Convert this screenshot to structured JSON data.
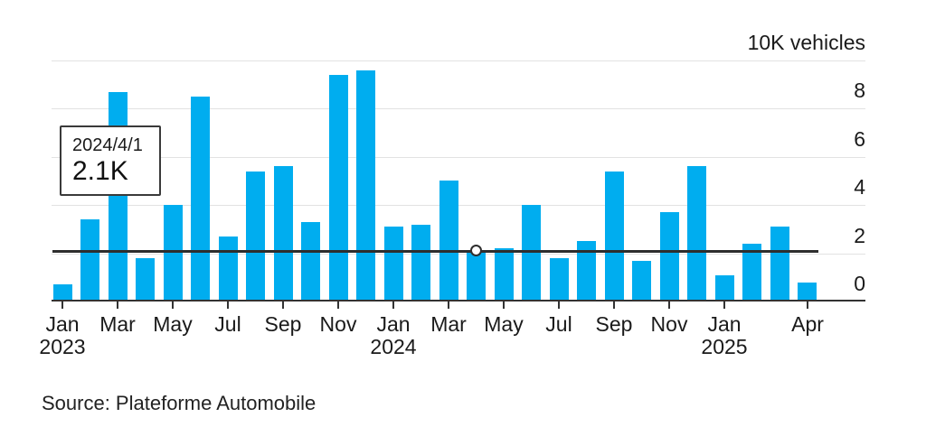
{
  "chart_data": {
    "type": "bar",
    "title": "",
    "top_axis_label": "10K vehicles",
    "ylim": [
      0,
      10
    ],
    "y_ticks": [
      0,
      2,
      4,
      6,
      8
    ],
    "gridline_values": [
      2,
      4,
      6,
      8,
      10
    ],
    "grid": "horizontal",
    "legend_position": "none",
    "categories": [
      "Jan 2023",
      "Feb 2023",
      "Mar 2023",
      "Apr 2023",
      "May 2023",
      "Jun 2023",
      "Jul 2023",
      "Aug 2023",
      "Sep 2023",
      "Oct 2023",
      "Nov 2023",
      "Dec 2023",
      "Jan 2024",
      "Feb 2024",
      "Mar 2024",
      "Apr 2024",
      "May 2024",
      "Jun 2024",
      "Jul 2024",
      "Aug 2024",
      "Sep 2024",
      "Oct 2024",
      "Nov 2024",
      "Dec 2024",
      "Jan 2025",
      "Feb 2025",
      "Mar 2025",
      "Apr 2025"
    ],
    "values": [
      0.7,
      3.4,
      8.7,
      1.8,
      4.0,
      8.5,
      2.7,
      5.4,
      5.6,
      3.3,
      9.4,
      9.6,
      3.1,
      3.2,
      5.0,
      2.1,
      2.2,
      4.0,
      1.8,
      2.5,
      5.4,
      1.7,
      3.7,
      5.6,
      1.1,
      2.4,
      3.1,
      0.8
    ],
    "x_ticks": [
      {
        "index": 0,
        "label": "Jan",
        "year": "2023"
      },
      {
        "index": 2,
        "label": "Mar"
      },
      {
        "index": 4,
        "label": "May"
      },
      {
        "index": 6,
        "label": "Jul"
      },
      {
        "index": 8,
        "label": "Sep"
      },
      {
        "index": 10,
        "label": "Nov"
      },
      {
        "index": 12,
        "label": "Jan",
        "year": "2024"
      },
      {
        "index": 14,
        "label": "Mar"
      },
      {
        "index": 16,
        "label": "May"
      },
      {
        "index": 18,
        "label": "Jul"
      },
      {
        "index": 20,
        "label": "Sep"
      },
      {
        "index": 22,
        "label": "Nov"
      },
      {
        "index": 24,
        "label": "Jan",
        "year": "2025"
      },
      {
        "index": 27,
        "label": "Apr"
      }
    ],
    "annotation_line_value": 2.1,
    "hovered_bar": {
      "category": "Apr 2024",
      "index": 15,
      "value": 2.1
    }
  },
  "tooltip": {
    "date": "2024/4/1",
    "value": "2.1K"
  },
  "source_text": "Source:  Plateforme Automobile",
  "colors": {
    "bar": "#00adef",
    "grid": "#e2e2e2",
    "axis": "#333333",
    "annotation_line": "#2e2e2e",
    "text": "#1a1a1a",
    "tooltip_border": "#3a3a3a"
  }
}
